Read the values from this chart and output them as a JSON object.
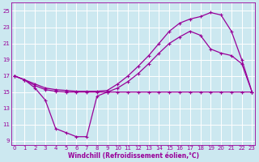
{
  "xlabel": "Windchill (Refroidissement éolien,°C)",
  "bg_color": "#cce8f0",
  "line_color": "#990099",
  "grid_color": "#ffffff",
  "xlim": [
    -0.3,
    23.3
  ],
  "ylim": [
    8.5,
    26.0
  ],
  "xticks": [
    0,
    1,
    2,
    3,
    4,
    5,
    6,
    7,
    8,
    9,
    10,
    11,
    12,
    13,
    14,
    15,
    16,
    17,
    18,
    19,
    20,
    21,
    22,
    23
  ],
  "yticks": [
    9,
    11,
    13,
    15,
    17,
    19,
    21,
    23,
    25
  ],
  "line1_x": [
    0,
    1,
    2,
    3,
    4,
    5,
    6,
    7,
    8,
    9,
    10,
    11,
    12,
    13,
    14,
    15,
    16,
    17,
    18,
    19,
    20,
    21,
    22,
    23
  ],
  "line1_y": [
    17.0,
    16.5,
    15.5,
    14.0,
    10.5,
    10.0,
    9.5,
    9.5,
    14.5,
    15.0,
    15.0,
    15.0,
    15.0,
    15.0,
    15.0,
    15.0,
    15.0,
    15.0,
    15.0,
    15.0,
    15.0,
    15.0,
    15.0,
    15.0
  ],
  "line2_x": [
    0,
    1,
    2,
    3,
    4,
    5,
    6,
    7,
    8,
    9,
    10,
    11,
    12,
    13,
    14,
    15,
    16,
    17,
    18,
    19,
    20,
    21,
    22,
    23
  ],
  "line2_y": [
    17.0,
    16.5,
    16.0,
    15.5,
    15.3,
    15.2,
    15.1,
    15.1,
    15.1,
    15.2,
    16.0,
    17.0,
    18.2,
    19.5,
    21.0,
    22.5,
    23.5,
    24.0,
    24.3,
    24.8,
    24.5,
    22.5,
    19.0,
    15.0
  ],
  "line3_x": [
    0,
    1,
    2,
    3,
    4,
    5,
    6,
    7,
    8,
    9,
    10,
    11,
    12,
    13,
    14,
    15,
    16,
    17,
    18,
    19,
    20,
    21,
    22,
    23
  ],
  "line3_y": [
    17.0,
    16.5,
    15.8,
    15.3,
    15.1,
    15.0,
    15.0,
    15.0,
    15.0,
    15.0,
    15.5,
    16.3,
    17.3,
    18.5,
    19.8,
    21.0,
    21.8,
    22.5,
    22.0,
    20.3,
    19.8,
    19.5,
    18.5,
    15.0
  ],
  "marker": "+",
  "markersize": 3,
  "linewidth": 0.9,
  "tick_fontsize": 5.0,
  "xlabel_fontsize": 5.5
}
